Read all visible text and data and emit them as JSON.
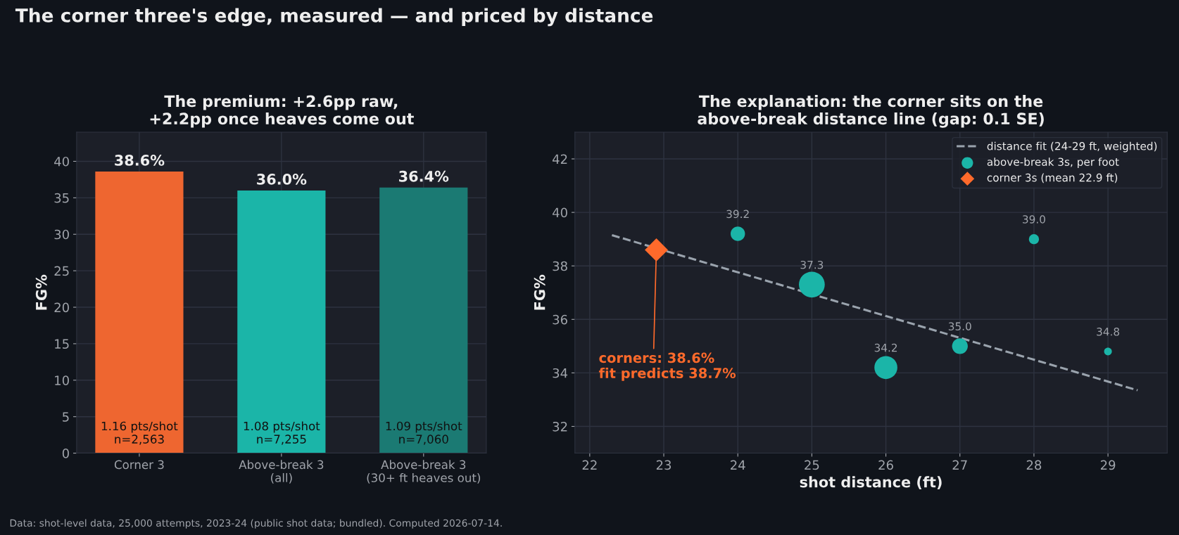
{
  "chart_data": [
    {
      "type": "bar",
      "title": "The corner three's edge, measured — and priced by distance",
      "subtitle": "The premium: +2.6pp raw,\n+2.2pp once heaves come out",
      "ylabel": "FG%",
      "categories": [
        "Corner 3",
        "Above-break 3\n(all)",
        "Above-break 3\n(30+ ft heaves out)"
      ],
      "values": [
        38.6,
        36.0,
        36.4
      ],
      "colors": [
        "#ee6630",
        "#1bb5a8",
        "#1b7a73"
      ],
      "value_labels": [
        "38.6%",
        "36.0%",
        "36.4%"
      ],
      "ylim": [
        0,
        44
      ],
      "yticks": [
        0,
        5,
        10,
        15,
        20,
        25,
        30,
        35,
        40
      ],
      "grid": true,
      "annotations": [
        "1.16 pts/shot\nn=2,563",
        "1.08 pts/shot\nn=7,255",
        "1.09 pts/shot\nn=7,060",
        "Data: shot-level data, 25,000 attempts, 2023-24 (public shot data; bundled). Computed 2026-07-14."
      ]
    },
    {
      "type": "bubble",
      "subtitle": "The explanation: the corner sits on the\nabove-break distance line (gap: 0.1 SE)",
      "xlabel": "shot distance (ft)",
      "ylabel": "FG%",
      "xlim": [
        21.8,
        29.8
      ],
      "xticks": [
        22,
        23,
        24,
        25,
        26,
        27,
        28,
        29
      ],
      "ylim": [
        31,
        43
      ],
      "yticks": [
        32,
        34,
        36,
        38,
        40,
        42
      ],
      "grid": true,
      "legend": "top right",
      "series": [
        {
          "name": "distance fit (24-29 ft, weighted)",
          "type": "line",
          "line_style": "dashed",
          "color": "#9aa3ad",
          "x": [
            22.3,
            29.4
          ],
          "values": [
            39.15,
            33.35
          ]
        },
        {
          "name": "above-break 3s, per foot",
          "type": "bubble",
          "marker": "circle",
          "color": "#1bb5a8",
          "x": [
            24,
            25,
            26,
            27,
            28,
            29
          ],
          "values": [
            39.2,
            37.3,
            34.2,
            35.0,
            39.0,
            34.8
          ],
          "sizes": [
            0.31,
            1,
            0.79,
            0.37,
            0.15,
            0.09
          ],
          "value_labels": [
            "39.2",
            "37.3",
            "34.2",
            "35.0",
            "39.0",
            "34.8"
          ]
        },
        {
          "name": "corner 3s (mean 22.9 ft)",
          "type": "scatter",
          "marker": "diamond",
          "color": "#ff6a2b",
          "x": [
            22.9
          ],
          "values": [
            38.6
          ]
        }
      ],
      "annotations": [
        {
          "text": "corners: 38.6%\nfit predicts 38.7%",
          "x": 22.9,
          "y": 38.6
        }
      ]
    }
  ]
}
